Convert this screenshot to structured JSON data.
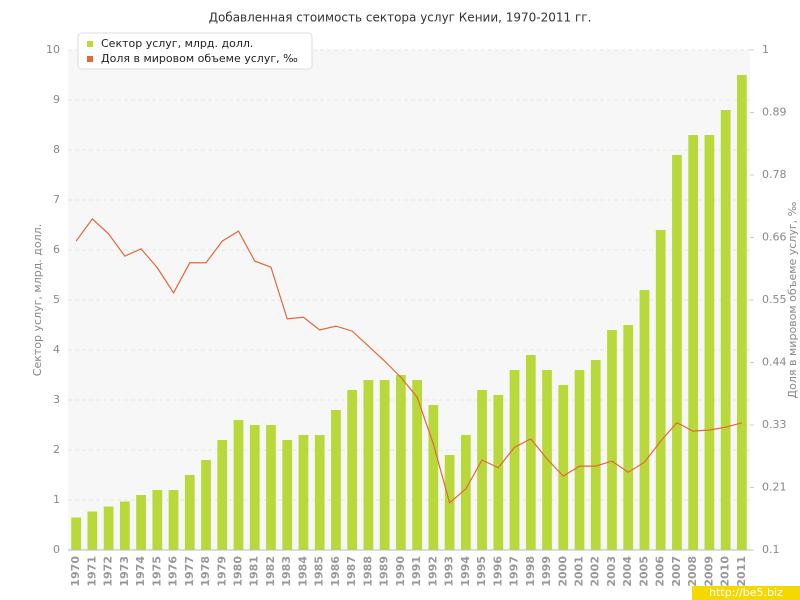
{
  "chart_data": {
    "type": "bar",
    "title": "Добавленная стоимость сектора услуг Кении, 1970-2011 гг.",
    "y_label": "Сектор услуг, млрд. долл.",
    "y2_label": "Доля в мировом объеме услуг, ‰",
    "categories": [
      "1970",
      "1971",
      "1972",
      "1973",
      "1974",
      "1975",
      "1976",
      "1977",
      "1978",
      "1979",
      "1980",
      "1981",
      "1982",
      "1983",
      "1984",
      "1985",
      "1986",
      "1987",
      "1988",
      "1989",
      "1990",
      "1991",
      "1992",
      "1993",
      "1994",
      "1995",
      "1996",
      "1997",
      "1998",
      "1999",
      "2000",
      "2001",
      "2002",
      "2003",
      "2004",
      "2005",
      "2006",
      "2007",
      "2008",
      "2009",
      "2010",
      "2011"
    ],
    "series": [
      {
        "name": "Сектор услуг, млрд. долл.",
        "type": "bar",
        "color": "#b9d83a",
        "values": [
          0.65,
          0.77,
          0.87,
          0.97,
          1.1,
          1.2,
          1.2,
          1.5,
          1.8,
          2.2,
          2.6,
          2.5,
          2.5,
          2.2,
          2.3,
          2.3,
          2.8,
          3.2,
          3.4,
          3.4,
          3.5,
          3.4,
          2.9,
          1.9,
          2.3,
          3.2,
          3.1,
          3.6,
          3.9,
          3.6,
          3.3,
          3.6,
          3.8,
          4.4,
          4.5,
          5.2,
          6.4,
          7.9,
          8.3,
          8.3,
          8.8,
          9.5
        ]
      },
      {
        "name": "Доля в мировом объеме услуг, ‰",
        "type": "line",
        "axis": "y2",
        "color": "#e0693a",
        "values": [
          0.656,
          0.696,
          0.669,
          0.629,
          0.642,
          0.608,
          0.563,
          0.617,
          0.617,
          0.656,
          0.674,
          0.62,
          0.609,
          0.516,
          0.519,
          0.496,
          0.503,
          0.494,
          0.467,
          0.44,
          0.411,
          0.375,
          0.291,
          0.185,
          0.21,
          0.262,
          0.248,
          0.285,
          0.3,
          0.264,
          0.233,
          0.251,
          0.251,
          0.26,
          0.24,
          0.258,
          0.296,
          0.329,
          0.314,
          0.316,
          0.321,
          0.329
        ]
      }
    ],
    "ylim": [
      0,
      10
    ],
    "yticks": [
      0,
      1,
      2,
      3,
      4,
      5,
      6,
      7,
      8,
      9,
      10
    ],
    "y2lim": [
      0.1,
      1
    ],
    "y2ticks": [
      0.1,
      {
        "value": 0.2125,
        "label": "0.21"
      },
      {
        "value": 0.325,
        "label": "0.33"
      },
      {
        "value": 0.4375,
        "label": "0.44"
      },
      0.55,
      {
        "value": 0.6625,
        "label": "0.66"
      },
      {
        "value": 0.775,
        "label": "0.78"
      },
      {
        "value": 0.8875,
        "label": "0.89"
      },
      1
    ],
    "grid": true,
    "legend": "top-left"
  },
  "watermark": "http://be5.biz"
}
